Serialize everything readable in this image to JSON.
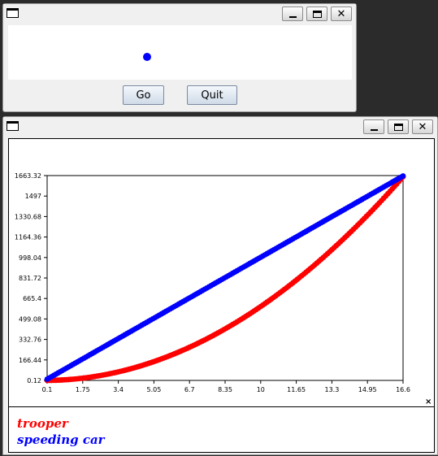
{
  "window1": {
    "title_icon": "window-icon",
    "controls": {
      "minimize_icon": "minimize-icon",
      "maximize_icon": "maximize-icon",
      "close_label": "✕"
    },
    "go_label": "Go",
    "quit_label": "Quit"
  },
  "window2": {
    "title_icon": "window-icon",
    "controls": {
      "minimize_icon": "minimize-icon",
      "maximize_icon": "maximize-icon",
      "close_label": "✕"
    },
    "legend_close_label": "×"
  },
  "chart_data": {
    "type": "scatter",
    "title": "",
    "xlabel": "",
    "ylabel": "",
    "x_ticks": [
      "0.1",
      "1.75",
      "3.4",
      "5.05",
      "6.7",
      "8.35",
      "10",
      "11.65",
      "13.3",
      "14.95",
      "16.6"
    ],
    "y_ticks": [
      "0.12",
      "166.44",
      "332.76",
      "499.08",
      "665.4",
      "831.72",
      "998.04",
      "1164.36",
      "1330.68",
      "1497",
      "1663.32"
    ],
    "xlim": [
      0.1,
      16.6
    ],
    "ylim": [
      0.12,
      1663.32
    ],
    "series": [
      {
        "name": "trooper",
        "color": "#ff0000",
        "formula": "y = 6 * x^2",
        "x_start": 0.1,
        "x_end": 16.6,
        "x_step": 0.1
      },
      {
        "name": "speeding car",
        "color": "#0000ff",
        "formula": "y = 100 * x",
        "x_start": 0.1,
        "x_end": 16.6,
        "x_step": 0.1
      }
    ],
    "grid": false,
    "legend_position": "bottom-left"
  }
}
